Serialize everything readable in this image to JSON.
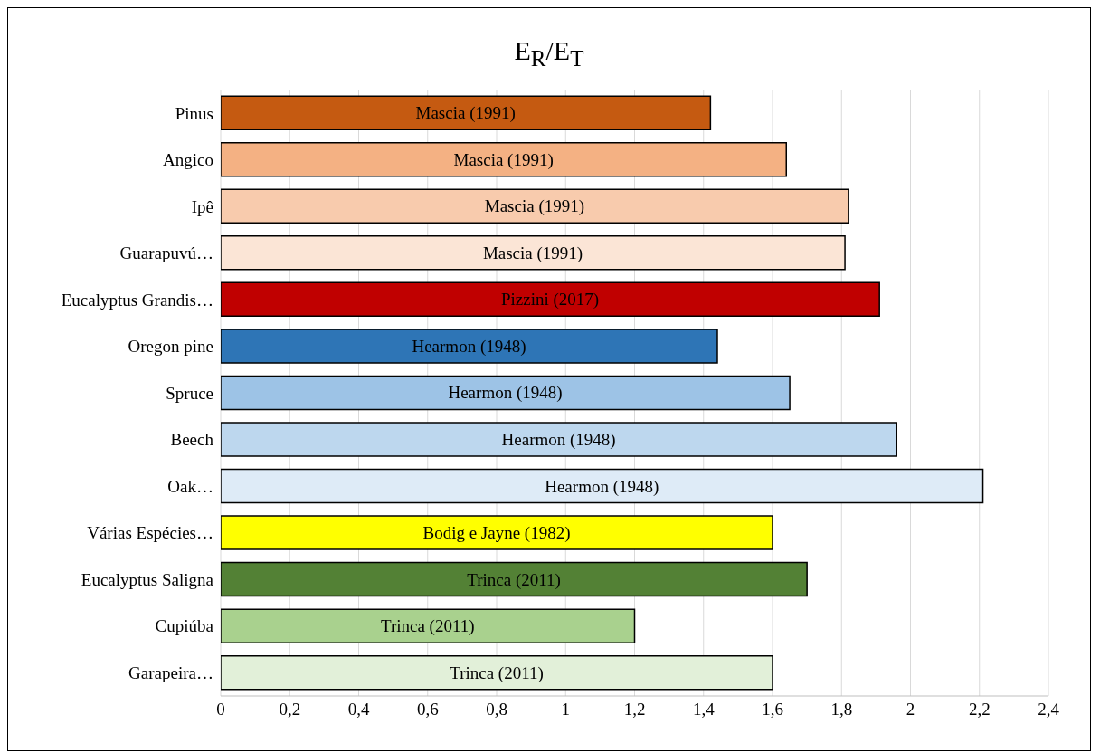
{
  "chart_data": {
    "type": "bar",
    "orientation": "horizontal",
    "title": "E$_{R}$/E$_{T}$",
    "categories": [
      "Pinus",
      "Angico",
      "Ipê",
      "Guarapuvú…",
      "Eucalyptus Grandis…",
      "Oregon pine",
      "Spruce",
      "Beech",
      "Oak…",
      "Várias Espécies…",
      "Eucalyptus Saligna",
      "Cupiúba",
      "Garapeira…"
    ],
    "values": [
      1.42,
      1.64,
      1.82,
      1.81,
      1.91,
      1.44,
      1.65,
      1.96,
      2.21,
      1.6,
      1.7,
      1.2,
      1.6
    ],
    "colors": [
      "#c55a11",
      "#f4b183",
      "#f8cbad",
      "#fbe5d6",
      "#c00000",
      "#2e75b6",
      "#9dc3e6",
      "#bdd7ee",
      "#deebf7",
      "#ffff00",
      "#538135",
      "#a9d18e",
      "#e2f0d9"
    ],
    "xlim": [
      0,
      2.4
    ],
    "xticks": [
      0,
      {
        "value": 0.2,
        "label": "0,2"
      },
      {
        "value": 0.4,
        "label": "0,4"
      },
      {
        "value": 0.6,
        "label": "0,6"
      },
      {
        "value": 0.8,
        "label": "0,8"
      },
      1,
      {
        "value": 1.2,
        "label": "1,2"
      },
      {
        "value": 1.4,
        "label": "1,4"
      },
      {
        "value": 1.6,
        "label": "1,6"
      },
      {
        "value": 1.8,
        "label": "1,8"
      },
      2,
      {
        "value": 2.2,
        "label": "2,2"
      },
      {
        "value": 2.4,
        "label": "2,4"
      }
    ],
    "grid": "x",
    "annotations": [
      {
        "text": "Mascia (1991)",
        "y": "Pinus"
      },
      {
        "text": "Mascia (1991)",
        "y": "Angico"
      },
      {
        "text": "Mascia (1991)",
        "y": "Ipê"
      },
      {
        "text": "Mascia (1991)",
        "y": "Guarapuvú…"
      },
      {
        "text": "Pizzini (2017)",
        "y": "Eucalyptus Grandis…"
      },
      {
        "text": "Hearmon (1948)",
        "y": "Oregon pine"
      },
      {
        "text": "Hearmon (1948)",
        "y": "Spruce"
      },
      {
        "text": "Hearmon (1948)",
        "y": "Beech"
      },
      {
        "text": "Hearmon (1948)",
        "y": "Oak…"
      },
      {
        "text": "Bodig e Jayne (1982)",
        "y": "Várias Espécies…"
      },
      {
        "text": "Trinca (2011)",
        "y": "Eucalyptus Saligna"
      },
      {
        "text": "Trinca (2011)",
        "y": "Cupiúba"
      },
      {
        "text": "Trinca (2011)",
        "y": "Garapeira…"
      }
    ]
  }
}
